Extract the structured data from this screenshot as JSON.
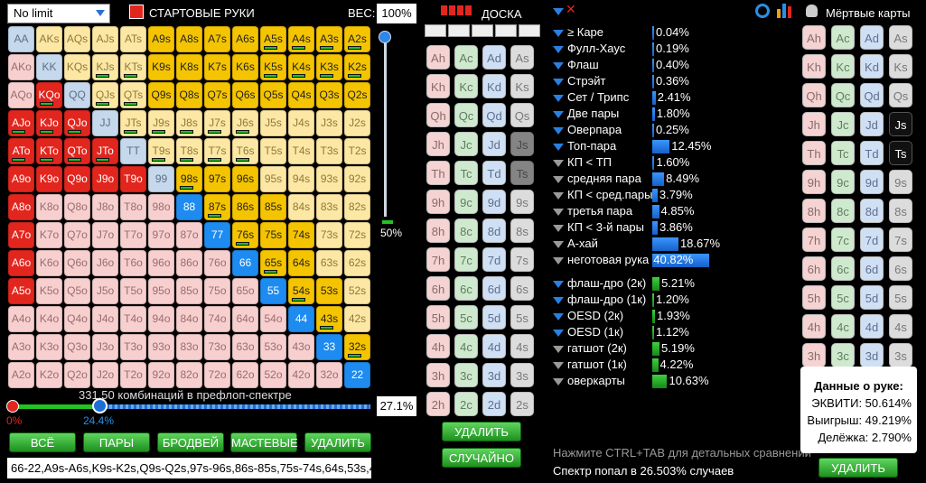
{
  "top": {
    "mode": "No limit",
    "start_hands": "СТАРТОВЫЕ РУКИ",
    "weight_label": "ВЕС:",
    "weight": "100%",
    "board": "ДОСКА",
    "dead": "Мёртвые карты"
  },
  "hands": [
    [
      "AA",
      "AKs",
      "AQs",
      "AJs",
      "ATs",
      "A9s",
      "A8s",
      "A7s",
      "A6s",
      "A5s",
      "A4s",
      "A3s",
      "A2s"
    ],
    [
      "AKo",
      "KK",
      "KQs",
      "KJs",
      "KTs",
      "K9s",
      "K8s",
      "K7s",
      "K6s",
      "K5s",
      "K4s",
      "K3s",
      "K2s"
    ],
    [
      "AQo",
      "KQo",
      "QQ",
      "QJs",
      "QTs",
      "Q9s",
      "Q8s",
      "Q7s",
      "Q6s",
      "Q5s",
      "Q4s",
      "Q3s",
      "Q2s"
    ],
    [
      "AJo",
      "KJo",
      "QJo",
      "JJ",
      "JTs",
      "J9s",
      "J8s",
      "J7s",
      "J6s",
      "J5s",
      "J4s",
      "J3s",
      "J2s"
    ],
    [
      "ATo",
      "KTo",
      "QTo",
      "JTo",
      "TT",
      "T9s",
      "T8s",
      "T7s",
      "T6s",
      "T5s",
      "T4s",
      "T3s",
      "T2s"
    ],
    [
      "A9o",
      "K9o",
      "Q9o",
      "J9o",
      "T9o",
      "99",
      "98s",
      "97s",
      "96s",
      "95s",
      "94s",
      "93s",
      "92s"
    ],
    [
      "A8o",
      "K8o",
      "Q8o",
      "J8o",
      "T8o",
      "98o",
      "88",
      "87s",
      "86s",
      "85s",
      "84s",
      "83s",
      "82s"
    ],
    [
      "A7o",
      "K7o",
      "Q7o",
      "J7o",
      "T7o",
      "97o",
      "87o",
      "77",
      "76s",
      "75s",
      "74s",
      "73s",
      "72s"
    ],
    [
      "A6o",
      "K6o",
      "Q6o",
      "J6o",
      "T6o",
      "96o",
      "86o",
      "76o",
      "66",
      "65s",
      "64s",
      "63s",
      "62s"
    ],
    [
      "A5o",
      "K5o",
      "Q5o",
      "J5o",
      "T5o",
      "95o",
      "85o",
      "75o",
      "65o",
      "55",
      "54s",
      "53s",
      "52s"
    ],
    [
      "A4o",
      "K4o",
      "Q4o",
      "J4o",
      "T4o",
      "94o",
      "84o",
      "74o",
      "64o",
      "54o",
      "44",
      "43s",
      "42s"
    ],
    [
      "A3o",
      "K3o",
      "Q3o",
      "J3o",
      "T3o",
      "93o",
      "83o",
      "73o",
      "63o",
      "53o",
      "43o",
      "33",
      "32s"
    ],
    [
      "A2o",
      "K2o",
      "Q2o",
      "J2o",
      "T2o",
      "92o",
      "82o",
      "72o",
      "62o",
      "52o",
      "42o",
      "32o",
      "22"
    ]
  ],
  "slider": {
    "percent": "50%",
    "combos": "331.50 комбинаций в префлоп-спектре",
    "range_pct": "27.1%",
    "min": "0%",
    "val": "24.4%"
  },
  "buttons": {
    "all": "ВСЁ",
    "pairs": "ПАРЫ",
    "broadway": "БРОДВЕЙ",
    "suited": "МАСТЕВЫЕ",
    "delete": "УДАЛИТЬ",
    "board_delete": "УДАЛИТЬ",
    "random": "СЛУЧАЙНО",
    "dead_delete": "УДАЛИТЬ"
  },
  "range_text": "66-22,A9s-A6s,K9s-K2s,Q9s-Q2s,97s-96s,86s-85s,75s-74s,64s,53s,4",
  "board_cards": [
    [
      "Ah",
      "Ac",
      "Ad",
      "As"
    ],
    [
      "Kh",
      "Kc",
      "Kd",
      "Ks"
    ],
    [
      "Qh",
      "Qc",
      "Qd",
      "Qs"
    ],
    [
      "Jh",
      "Jc",
      "Jd",
      "Js"
    ],
    [
      "Th",
      "Tc",
      "Td",
      "Ts"
    ],
    [
      "9h",
      "9c",
      "9d",
      "9s"
    ],
    [
      "8h",
      "8c",
      "8d",
      "8s"
    ],
    [
      "7h",
      "7c",
      "7d",
      "7s"
    ],
    [
      "6h",
      "6c",
      "6d",
      "6s"
    ],
    [
      "5h",
      "5c",
      "5d",
      "5s"
    ],
    [
      "4h",
      "4c",
      "4d",
      "4s"
    ],
    [
      "3h",
      "3c",
      "3d",
      "3s"
    ],
    [
      "2h",
      "2c",
      "2d",
      "2s"
    ]
  ],
  "stats": [
    {
      "name": "≥ Каре",
      "v": "0.04%",
      "p": 0.04
    },
    {
      "name": "Фулл-Хаус",
      "v": "0.19%",
      "p": 0.19
    },
    {
      "name": "Флаш",
      "v": "0.40%",
      "p": 0.4
    },
    {
      "name": "Стрэйт",
      "v": "0.36%",
      "p": 0.36
    },
    {
      "name": "Сет / Трипс",
      "v": "2.41%",
      "p": 2.41
    },
    {
      "name": "Две пары",
      "v": "1.80%",
      "p": 1.8
    },
    {
      "name": "Оверпара",
      "v": "0.25%",
      "p": 0.25
    },
    {
      "name": "Топ-пара",
      "v": "12.45%",
      "p": 12.45
    },
    {
      "name": "КП < ТП",
      "v": "1.60%",
      "p": 1.6
    },
    {
      "name": "средняя пара",
      "v": "8.49%",
      "p": 8.49
    },
    {
      "name": "КП < сред.пары",
      "v": "3.79%",
      "p": 3.79
    },
    {
      "name": "третья пара",
      "v": "4.85%",
      "p": 4.85
    },
    {
      "name": "КП < 3-й пары",
      "v": "3.86%",
      "p": 3.86
    },
    {
      "name": "А-хай",
      "v": "18.67%",
      "p": 18.67
    },
    {
      "name": "неготовая рука",
      "v": "40.82%",
      "p": 40.82
    }
  ],
  "draws": [
    {
      "name": "флаш-дро (2к)",
      "v": "5.21%",
      "p": 5.21
    },
    {
      "name": "флаш-дро (1к)",
      "v": "1.20%",
      "p": 1.2
    },
    {
      "name": "OESD (2к)",
      "v": "1.93%",
      "p": 1.93
    },
    {
      "name": "OESD (1к)",
      "v": "1.12%",
      "p": 1.12
    },
    {
      "name": "гатшот (2к)",
      "v": "5.19%",
      "p": 5.19
    },
    {
      "name": "гатшот (1к)",
      "v": "4.22%",
      "p": 4.22
    },
    {
      "name": "оверкарты",
      "v": "10.63%",
      "p": 10.63
    }
  ],
  "hand_info": {
    "title": "Данные о руке:",
    "equity": "ЭКВИТИ: 50.614%",
    "win": "Выигрыш: 49.219%",
    "tie": "Делёжка: 2.790%"
  },
  "hint": "Нажмите CTRL+TAB для детальных сравнений",
  "hit": "Спектр попал в 26.503% случаев"
}
